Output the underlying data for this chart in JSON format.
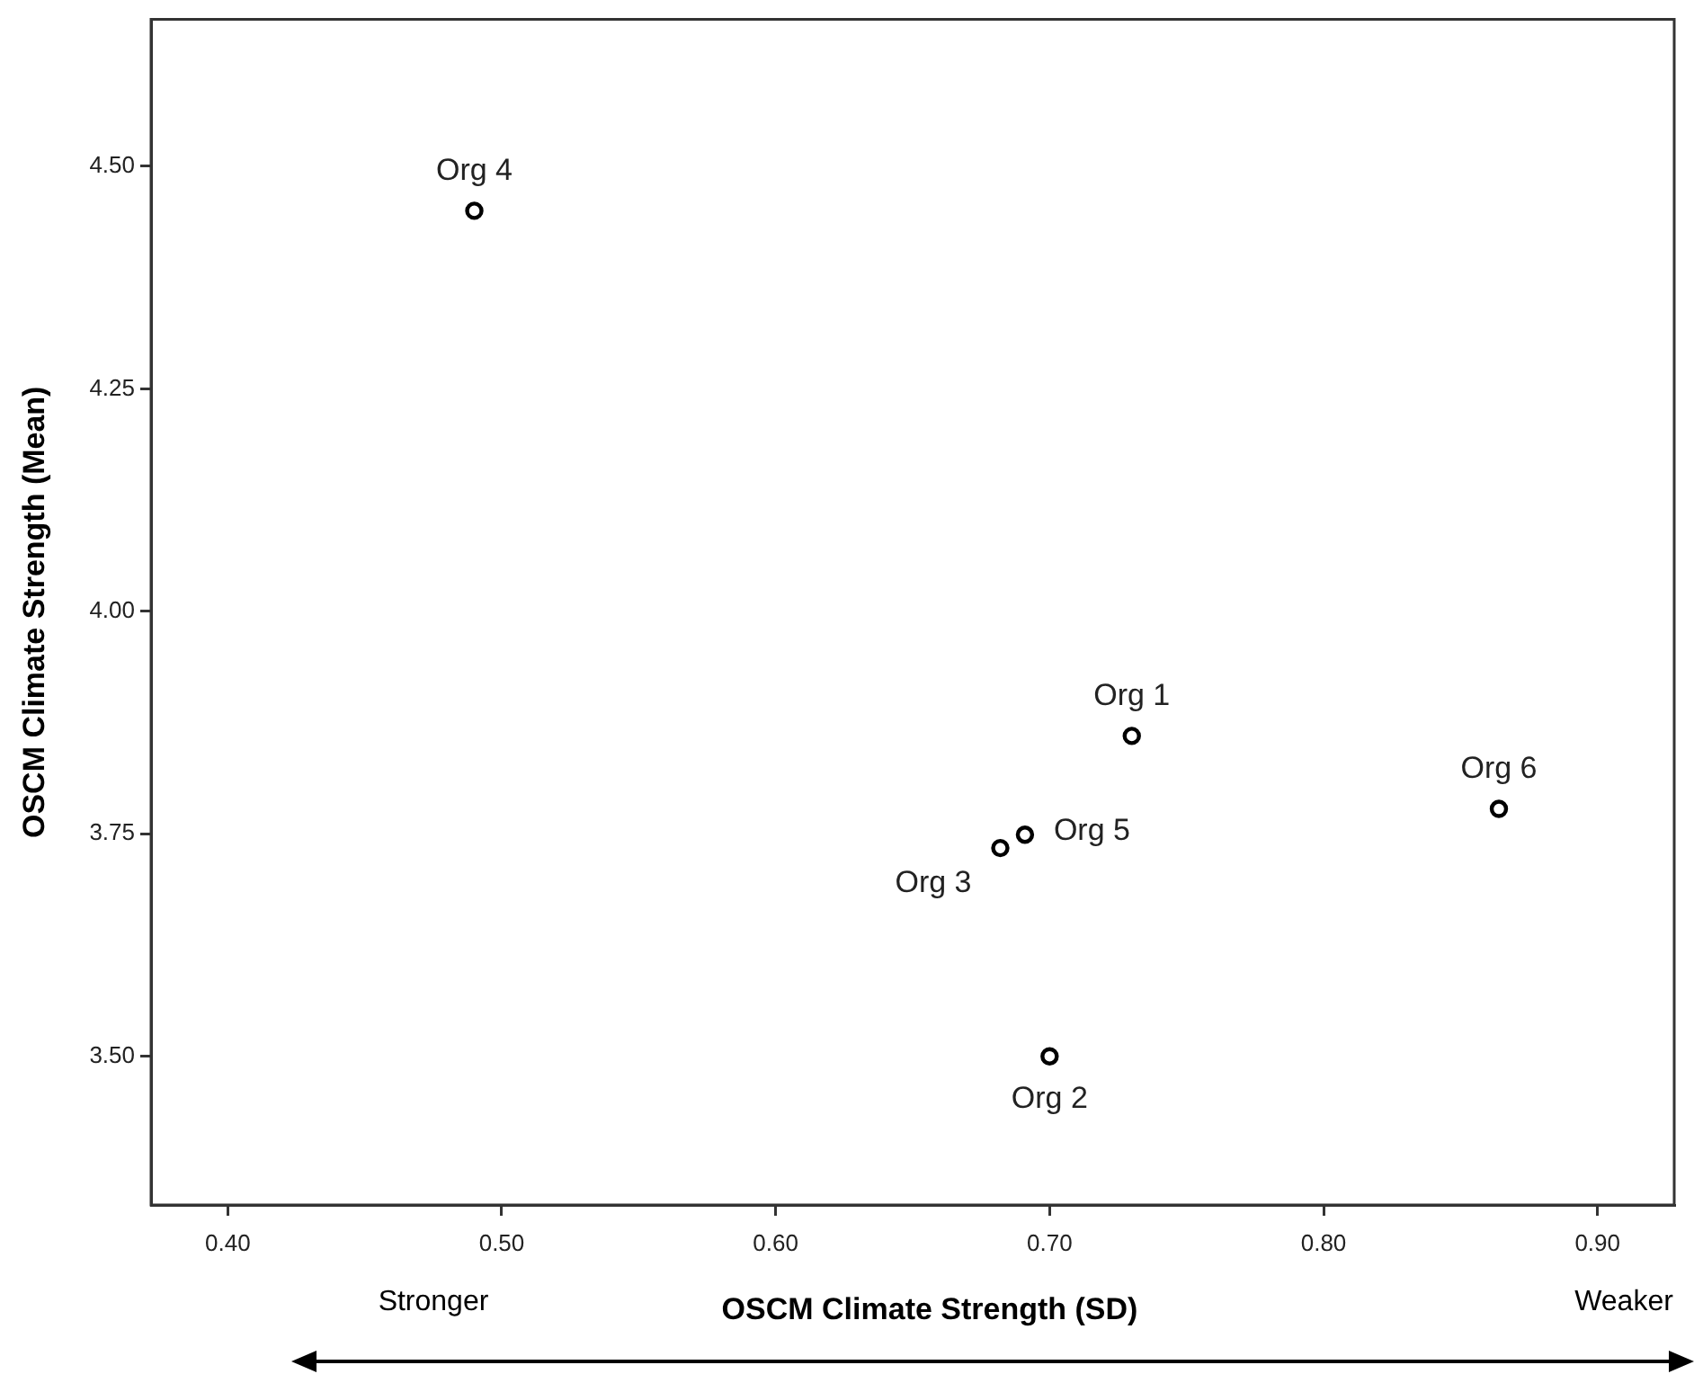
{
  "chart_data": {
    "type": "scatter",
    "xlabel": "OSCM Climate Strength (SD)",
    "ylabel": "OSCM Climate Strength (Mean)",
    "series": [
      {
        "name": "Org 1",
        "color": "#000000",
        "x": [
          0.73
        ],
        "values": [
          3.86
        ]
      },
      {
        "name": "Org 2",
        "color": "#000000",
        "x": [
          0.7
        ],
        "values": [
          3.5
        ]
      },
      {
        "name": "Org 3",
        "color": "#000000",
        "x": [
          0.682
        ],
        "values": [
          3.734
        ]
      },
      {
        "name": "Org 4",
        "color": "#000000",
        "x": [
          0.49
        ],
        "values": [
          4.45
        ]
      },
      {
        "name": "Org 5",
        "color": "#000000",
        "x": [
          0.691
        ],
        "values": [
          3.749
        ]
      },
      {
        "name": "Org 6",
        "color": "#000000",
        "x": [
          0.864
        ],
        "values": [
          3.778
        ]
      }
    ],
    "xlim": [
      0.372,
      0.928
    ],
    "xticks": [
      {
        "value": 0.4,
        "label": "0.40"
      },
      {
        "value": 0.5,
        "label": "0.50"
      },
      {
        "value": 0.6,
        "label": "0.60"
      },
      {
        "value": 0.7,
        "label": "0.70"
      },
      {
        "value": 0.8,
        "label": "0.80"
      },
      {
        "value": 0.9,
        "label": "0.90"
      }
    ],
    "ylim": [
      3.333,
      4.665
    ],
    "yticks": [
      {
        "value": 3.5,
        "label": "3.50"
      },
      {
        "value": 3.75,
        "label": "3.75"
      },
      {
        "value": 4.0,
        "label": "4.00"
      },
      {
        "value": 4.25,
        "label": "4.25"
      },
      {
        "value": 4.5,
        "label": "4.50"
      }
    ],
    "annotations": [
      "Stronger",
      "Weaker"
    ],
    "marker": "circle",
    "grid": false,
    "legend": false
  }
}
